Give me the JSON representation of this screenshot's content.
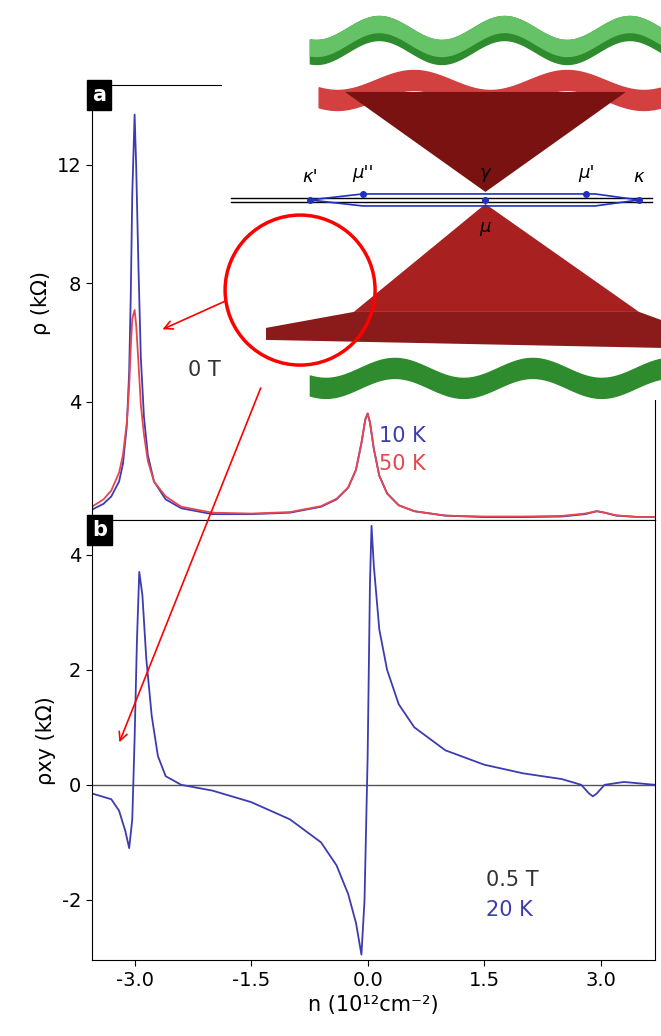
{
  "chart_data": [
    {
      "type": "line",
      "panel_label": "a",
      "y_label": "ρ (kΩ)",
      "annotations": [
        "0 T"
      ],
      "xlim": [
        -3.55,
        3.7
      ],
      "ylim": [
        0,
        14.7
      ],
      "xticks": [
        {
          "value": -3.0,
          "label": "-3.0"
        },
        {
          "value": -1.5,
          "label": "-1.5"
        },
        {
          "value": 0.0,
          "label": "0.0"
        },
        {
          "value": 1.5,
          "label": "1.5"
        },
        {
          "value": 3.0,
          "label": "3.0"
        }
      ],
      "yticks": [
        4,
        8,
        12
      ],
      "tick_labels": "y",
      "x": [
        -3.55,
        -3.4,
        -3.3,
        -3.2,
        -3.15,
        -3.1,
        -3.07,
        -3.05,
        -3.03,
        -3.0,
        -2.98,
        -2.95,
        -2.92,
        -2.88,
        -2.83,
        -2.75,
        -2.6,
        -2.4,
        -2.0,
        -1.5,
        -1.0,
        -0.6,
        -0.4,
        -0.25,
        -0.15,
        -0.08,
        -0.03,
        0.0,
        0.03,
        0.08,
        0.15,
        0.25,
        0.4,
        0.6,
        1.0,
        1.5,
        2.0,
        2.5,
        2.8,
        2.95,
        3.05,
        3.2,
        3.5,
        3.7
      ],
      "series": [
        {
          "name": "10 K",
          "color": "#3c3cb0",
          "values": [
            0.35,
            0.55,
            0.8,
            1.3,
            1.9,
            3.2,
            5.0,
            7.5,
            11.0,
            13.7,
            12.0,
            8.5,
            5.5,
            3.5,
            2.2,
            1.3,
            0.7,
            0.4,
            0.2,
            0.2,
            0.25,
            0.45,
            0.7,
            1.1,
            1.7,
            2.6,
            3.4,
            3.6,
            3.3,
            2.4,
            1.5,
            0.9,
            0.5,
            0.3,
            0.15,
            0.1,
            0.1,
            0.12,
            0.2,
            0.3,
            0.25,
            0.15,
            0.1,
            0.1
          ]
        },
        {
          "name": "50 K",
          "color": "#e8454f",
          "values": [
            0.45,
            0.7,
            1.0,
            1.6,
            2.2,
            3.3,
            4.5,
            5.8,
            6.8,
            7.1,
            6.6,
            5.3,
            3.9,
            2.9,
            2.0,
            1.3,
            0.8,
            0.45,
            0.25,
            0.22,
            0.27,
            0.47,
            0.72,
            1.1,
            1.7,
            2.6,
            3.4,
            3.6,
            3.3,
            2.4,
            1.5,
            0.9,
            0.5,
            0.3,
            0.15,
            0.12,
            0.12,
            0.14,
            0.22,
            0.3,
            0.25,
            0.16,
            0.1,
            0.1
          ]
        }
      ]
    },
    {
      "type": "line",
      "panel_label": "b",
      "y_label": "ρxy (kΩ)",
      "x_label": "n (10¹²cm⁻²)",
      "annotations": [
        "0.5 T"
      ],
      "reference_line": 0,
      "xlim": [
        -3.55,
        3.7
      ],
      "ylim": [
        -3.05,
        4.6
      ],
      "xticks": [
        {
          "value": -3.0,
          "label": "-3.0"
        },
        {
          "value": -1.5,
          "label": "-1.5"
        },
        {
          "value": 0.0,
          "label": "0.0"
        },
        {
          "value": 1.5,
          "label": "1.5"
        },
        {
          "value": 3.0,
          "label": "3.0"
        }
      ],
      "yticks": [
        -2,
        0,
        2,
        4
      ],
      "x": [
        -3.55,
        -3.3,
        -3.2,
        -3.12,
        -3.07,
        -3.03,
        -3.0,
        -2.97,
        -2.94,
        -2.9,
        -2.85,
        -2.78,
        -2.7,
        -2.6,
        -2.4,
        -2.0,
        -1.5,
        -1.0,
        -0.6,
        -0.4,
        -0.25,
        -0.15,
        -0.08,
        -0.04,
        0.0,
        0.03,
        0.05,
        0.08,
        0.15,
        0.25,
        0.4,
        0.6,
        1.0,
        1.5,
        2.0,
        2.5,
        2.75,
        2.85,
        2.9,
        2.95,
        3.05,
        3.3,
        3.7
      ],
      "series": [
        {
          "name": "20 K",
          "color": "#3c3cb0",
          "values": [
            -0.15,
            -0.25,
            -0.45,
            -0.8,
            -1.1,
            -0.6,
            0.8,
            2.5,
            3.7,
            3.3,
            2.2,
            1.2,
            0.5,
            0.15,
            0.0,
            -0.1,
            -0.3,
            -0.6,
            -1.0,
            -1.4,
            -1.9,
            -2.4,
            -2.95,
            -2.0,
            0.5,
            3.5,
            4.5,
            3.8,
            2.7,
            2.0,
            1.4,
            1.0,
            0.6,
            0.35,
            0.2,
            0.1,
            0.0,
            -0.15,
            -0.2,
            -0.15,
            0.0,
            0.05,
            0.0
          ]
        }
      ]
    }
  ],
  "band_structure_labels": [
    "κ'",
    "μ''",
    "γ",
    "μ'",
    "κ",
    "μ"
  ]
}
